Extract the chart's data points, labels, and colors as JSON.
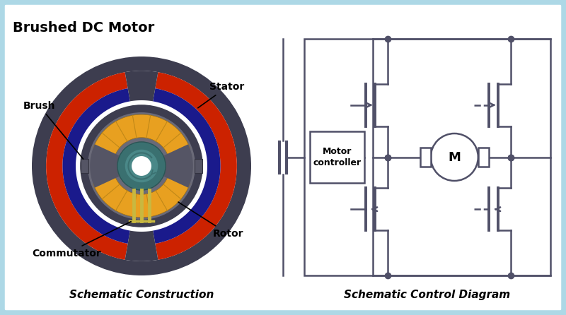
{
  "bg_color": "#add8e6",
  "panel_color": "#ffffff",
  "title": "Brushed DC Motor",
  "left_subtitle": "Schematic Construction",
  "right_subtitle": "Schematic Control Diagram",
  "stator_dark": "#3d3d4f",
  "stator_gray": "#888890",
  "brush_red": "#cc2200",
  "brush_blue": "#1a1a8c",
  "rotor_orange": "#e8a020",
  "commutator_yellow": "#c8b840",
  "hub_teal": "#3a7070",
  "hub_teal2": "#4a8888",
  "circuit_color": "#505068",
  "lw": 1.5
}
